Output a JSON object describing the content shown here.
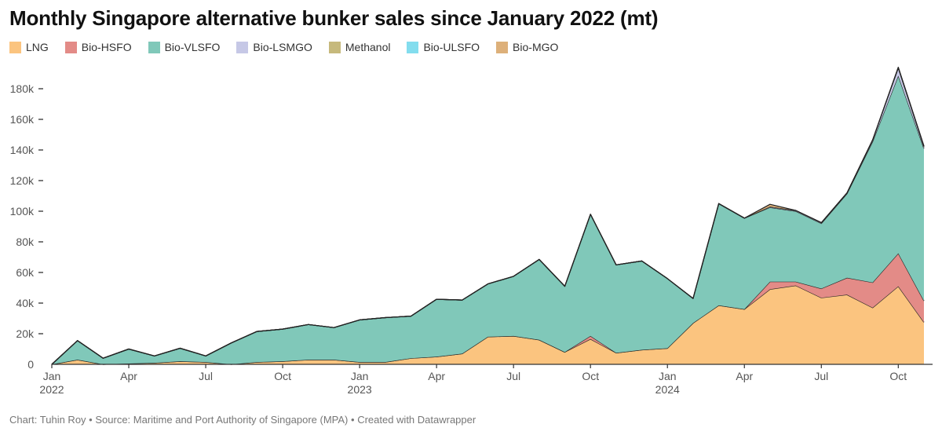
{
  "title": "Monthly Singapore alternative bunker sales since January 2022 (mt)",
  "footer": {
    "credit": "Chart: Tuhin Roy",
    "source": "Source: Maritime and Port Authority of Singapore (MPA)",
    "tool": "Created with Datawrapper",
    "separator": "•"
  },
  "chart_data": {
    "type": "area",
    "stacked": true,
    "title": "Monthly Singapore alternative bunker sales since January 2022 (mt)",
    "xlabel": "",
    "ylabel": "",
    "ylim": [
      0,
      200000
    ],
    "y_ticks": [
      0,
      20000,
      40000,
      60000,
      80000,
      100000,
      120000,
      140000,
      160000,
      180000
    ],
    "y_tick_labels": [
      "0",
      "20k",
      "40k",
      "60k",
      "80k",
      "100k",
      "120k",
      "140k",
      "160k",
      "180k"
    ],
    "x_tick_labels": [
      {
        "index": 0,
        "line1": "Jan",
        "line2": "2022"
      },
      {
        "index": 3,
        "line1": "Apr",
        "line2": ""
      },
      {
        "index": 6,
        "line1": "Jul",
        "line2": ""
      },
      {
        "index": 9,
        "line1": "Oct",
        "line2": ""
      },
      {
        "index": 12,
        "line1": "Jan",
        "line2": "2023"
      },
      {
        "index": 15,
        "line1": "Apr",
        "line2": ""
      },
      {
        "index": 18,
        "line1": "Jul",
        "line2": ""
      },
      {
        "index": 21,
        "line1": "Oct",
        "line2": ""
      },
      {
        "index": 24,
        "line1": "Jan",
        "line2": "2024"
      },
      {
        "index": 27,
        "line1": "Apr",
        "line2": ""
      },
      {
        "index": 30,
        "line1": "Jul",
        "line2": ""
      },
      {
        "index": 33,
        "line1": "Oct",
        "line2": ""
      }
    ],
    "categories": [
      "2022-01",
      "2022-02",
      "2022-03",
      "2022-04",
      "2022-05",
      "2022-06",
      "2022-07",
      "2022-08",
      "2022-09",
      "2022-10",
      "2022-11",
      "2022-12",
      "2023-01",
      "2023-02",
      "2023-03",
      "2023-04",
      "2023-05",
      "2023-06",
      "2023-07",
      "2023-08",
      "2023-09",
      "2023-10",
      "2023-11",
      "2023-12",
      "2024-01",
      "2024-02",
      "2024-03",
      "2024-04",
      "2024-05",
      "2024-06",
      "2024-07",
      "2024-08",
      "2024-09",
      "2024-10",
      "2024-11"
    ],
    "series": [
      {
        "name": "LNG",
        "color": "#fbc47f",
        "values": [
          0,
          3000,
          0,
          500,
          1000,
          2000,
          1500,
          0,
          1500,
          2000,
          3000,
          3000,
          1500,
          1500,
          4000,
          5000,
          7000,
          18000,
          18500,
          16000,
          8000,
          16500,
          7500,
          9500,
          10500,
          27000,
          38500,
          36000,
          49000,
          51500,
          43500,
          45500,
          37000,
          51000,
          27500
        ]
      },
      {
        "name": "Bio-HSFO",
        "color": "#e38b87",
        "values": [
          0,
          0,
          0,
          0,
          0,
          0,
          0,
          0,
          0,
          0,
          0,
          0,
          0,
          0,
          0,
          0,
          0,
          0,
          0,
          0,
          0,
          2000,
          0,
          0,
          0,
          0,
          0,
          0,
          5000,
          2500,
          6000,
          11000,
          16500,
          21500,
          14000
        ]
      },
      {
        "name": "Bio-VLSFO",
        "color": "#80c8b9",
        "values": [
          0,
          12500,
          4000,
          9500,
          4500,
          8500,
          4000,
          14000,
          20000,
          21000,
          23000,
          21000,
          27500,
          29000,
          27500,
          37500,
          35000,
          34500,
          39000,
          52500,
          43000,
          79500,
          57500,
          58000,
          45500,
          16000,
          66500,
          59500,
          48500,
          46000,
          42500,
          55000,
          92000,
          116000,
          99500
        ]
      },
      {
        "name": "Bio-LSMGO",
        "color": "#c6c8e6",
        "values": [
          0,
          0,
          0,
          0,
          0,
          0,
          0,
          0,
          0,
          0,
          0,
          0,
          0,
          0,
          0,
          0,
          0,
          0,
          0,
          0,
          0,
          0,
          0,
          0,
          0,
          0,
          0,
          0,
          500,
          500,
          500,
          500,
          1000,
          5000,
          1000
        ]
      },
      {
        "name": "Methanol",
        "color": "#c6b97c",
        "values": [
          0,
          0,
          0,
          0,
          0,
          0,
          0,
          0,
          0,
          0,
          0,
          0,
          0,
          0,
          0,
          0,
          0,
          0,
          0,
          0,
          0,
          0,
          0,
          0,
          0,
          0,
          0,
          0,
          0,
          0,
          0,
          0,
          0,
          500,
          500
        ]
      },
      {
        "name": "Bio-ULSFO",
        "color": "#83ddee",
        "values": [
          0,
          0,
          0,
          0,
          0,
          0,
          0,
          0,
          0,
          0,
          0,
          0,
          0,
          0,
          0,
          0,
          0,
          0,
          0,
          0,
          0,
          0,
          0,
          0,
          0,
          0,
          0,
          0,
          0,
          0,
          0,
          0,
          0,
          0,
          0
        ]
      },
      {
        "name": "Bio-MGO",
        "color": "#ddb07a",
        "values": [
          0,
          0,
          0,
          0,
          0,
          0,
          0,
          0,
          0,
          0,
          0,
          0,
          0,
          0,
          0,
          0,
          0,
          0,
          0,
          0,
          0,
          0,
          0,
          0,
          0,
          0,
          0,
          0,
          1500,
          0,
          0,
          0,
          0,
          0,
          0
        ]
      }
    ],
    "legend_position": "top-left"
  }
}
